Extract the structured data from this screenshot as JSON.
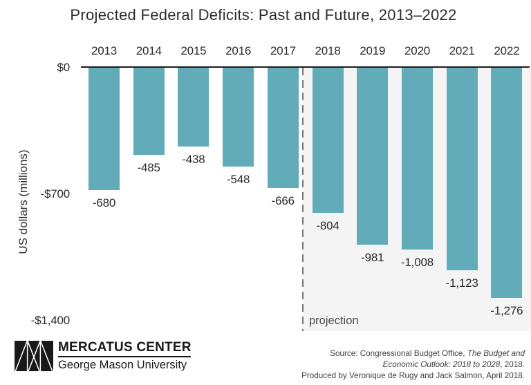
{
  "title": "Projected Federal Deficits: Past and Future, 2013–2022",
  "chart_data": {
    "type": "bar",
    "title": "Projected Federal Deficits: Past and Future, 2013–2022",
    "categories": [
      "2013",
      "2014",
      "2015",
      "2016",
      "2017",
      "2018",
      "2019",
      "2020",
      "2021",
      "2022"
    ],
    "values": [
      -680,
      -485,
      -438,
      -548,
      -666,
      -804,
      -981,
      -1008,
      -1123,
      -1276
    ],
    "value_labels": [
      "-680",
      "-485",
      "-438",
      "-548",
      "-666",
      "-804",
      "-981",
      "-1,008",
      "-1,123",
      "-1,276"
    ],
    "xlabel": "",
    "ylabel": "US dollars (millions)",
    "ylim": [
      -1400,
      0
    ],
    "yticks": [
      {
        "value": 0,
        "label": "$0"
      },
      {
        "value": -700,
        "label": "-$700"
      },
      {
        "value": -1400,
        "label": "-$1,400"
      }
    ],
    "grid": false,
    "bar_color": "#62abb8",
    "projection": {
      "label": "projection",
      "start_category": "2018",
      "background_color": "#f4f4f5",
      "divider_color": "#787878"
    }
  },
  "footer": {
    "logo": {
      "line1": "MERCATUS CENTER",
      "line2": "George Mason University"
    },
    "source": {
      "line1_roman": "Source: Congressional Budget Office, ",
      "line1_italic": "The Budget and",
      "line2_italic": "Economic Outlook: 2018 to 2028",
      "line2_roman": ", 2018.",
      "line3": "Produced by Veronique de Rugy and Jack Salmon, April 2018."
    }
  }
}
